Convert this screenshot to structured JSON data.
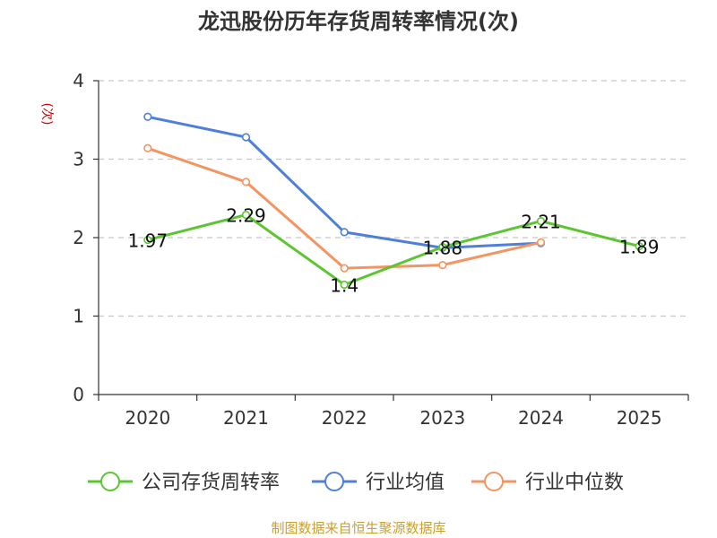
{
  "chart_data": {
    "type": "line",
    "title": "龙迅股份历年存货周转率情况(次)",
    "ylabel": "(次)",
    "xlabel": "",
    "ylim": [
      0,
      4
    ],
    "yticks": [
      "0",
      "1",
      "2",
      "3",
      "4"
    ],
    "categories": [
      "2020",
      "2021",
      "2022",
      "2023",
      "2024",
      "2025"
    ],
    "series": [
      {
        "name": "公司存货周转率",
        "color": "#5cc531",
        "values": [
          1.97,
          2.29,
          1.4,
          1.88,
          2.21,
          1.89
        ],
        "labels": [
          "1.97",
          "2.29",
          "1.4",
          "1.88",
          "2.21",
          "1.89"
        ]
      },
      {
        "name": "行业均值",
        "color": "#4e80d9",
        "values": [
          3.54,
          3.28,
          2.07,
          1.87,
          1.93,
          null
        ]
      },
      {
        "name": "行业中位数",
        "color": "#f39461",
        "values": [
          3.14,
          2.71,
          1.61,
          1.65,
          1.94,
          null
        ]
      }
    ],
    "grid": true,
    "legend_position": "bottom"
  },
  "source": "制图数据来自恒生聚源数据库"
}
